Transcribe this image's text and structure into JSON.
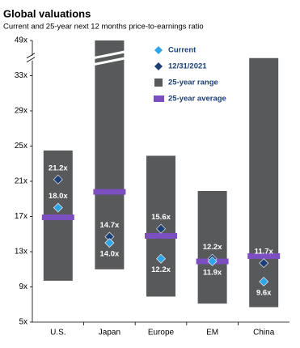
{
  "chart_data": {
    "type": "range",
    "title": "Global valuations",
    "subtitle": "Current and 25-year next 12 months price-to-earnings ratio",
    "categories": [
      "U.S.",
      "Japan",
      "Europe",
      "EM",
      "China"
    ],
    "series": [
      {
        "name": "Current",
        "color": "#2fa4e7",
        "values": [
          18.0,
          14.0,
          12.2,
          11.9,
          9.6
        ],
        "value_labels": [
          "18.0x",
          "14.0x",
          "12.2x",
          "11.9x",
          "9.6x"
        ]
      },
      {
        "name": "12/31/2021",
        "color": "#1c3f75",
        "values": [
          21.2,
          14.7,
          15.6,
          12.2,
          11.7
        ],
        "value_labels": [
          "21.2x",
          "14.7x",
          "15.6x",
          "12.2x",
          "11.7x"
        ]
      },
      {
        "name": "25-year range",
        "color": "#58595b",
        "low": [
          9.7,
          11.0,
          7.9,
          7.1,
          6.7
        ],
        "high": [
          24.5,
          49,
          23.9,
          19.9,
          41
        ]
      },
      {
        "name": "25-year average",
        "color": "#7b4fc0",
        "values": [
          16.9,
          19.8,
          14.8,
          11.9,
          12.5
        ]
      }
    ],
    "ylim": [
      5,
      49
    ],
    "yticks": [
      {
        "value": 5,
        "label": "5x"
      },
      {
        "value": 9,
        "label": "9x"
      },
      {
        "value": 13,
        "label": "13x"
      },
      {
        "value": 17,
        "label": "17x"
      },
      {
        "value": 21,
        "label": "21x"
      },
      {
        "value": 25,
        "label": "25x"
      },
      {
        "value": 29,
        "label": "29x"
      },
      {
        "value": 33,
        "label": "33x"
      },
      {
        "value": 49,
        "label": "49x"
      }
    ],
    "axis_break": true,
    "legend": "upper right"
  }
}
